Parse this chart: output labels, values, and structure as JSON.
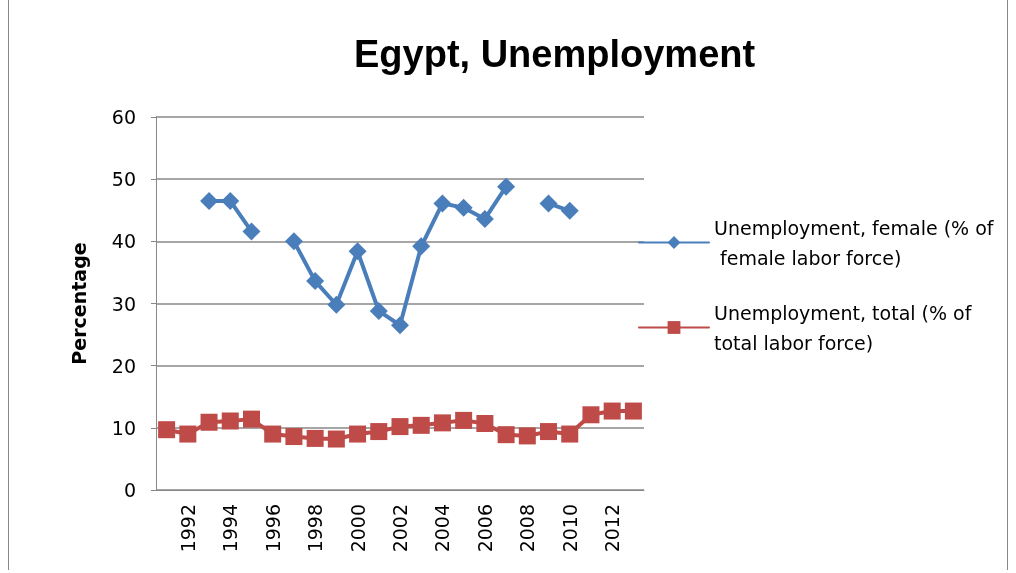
{
  "chart_data": {
    "type": "line",
    "title": "Egypt, Unemployment",
    "ylabel": "Percentage",
    "categories": [
      null,
      "1992",
      null,
      "1994",
      null,
      "1996",
      null,
      "1998",
      null,
      "2000",
      null,
      "2002",
      null,
      "2004",
      null,
      "2006",
      null,
      "2008",
      null,
      "2010",
      null,
      "2012",
      null
    ],
    "series": [
      {
        "name": "Unemployment, female (% of female labor force)",
        "color": "#4a7ebb",
        "marker": "diamond",
        "values": [
          null,
          null,
          46.5,
          46.5,
          41.6,
          null,
          40.0,
          33.6,
          29.8,
          38.4,
          28.8,
          26.5,
          39.2,
          46.1,
          45.4,
          43.6,
          48.8,
          null,
          46.1,
          44.9,
          null,
          null,
          null
        ]
      },
      {
        "name": "Unemployment, total (% of total labor force)",
        "color": "#be4b48",
        "marker": "square",
        "values": [
          9.7,
          9.0,
          10.9,
          11.1,
          11.4,
          9.0,
          8.6,
          8.3,
          8.2,
          9.0,
          9.4,
          10.2,
          10.4,
          10.8,
          11.2,
          10.7,
          8.9,
          8.7,
          9.4,
          9.0,
          12.1,
          12.7,
          12.7
        ]
      }
    ],
    "ylim": [
      0,
      60
    ],
    "yticks": [
      0,
      10,
      20,
      30,
      40,
      50,
      60
    ],
    "grid": "y",
    "legend": "right",
    "line_style": "solid"
  }
}
